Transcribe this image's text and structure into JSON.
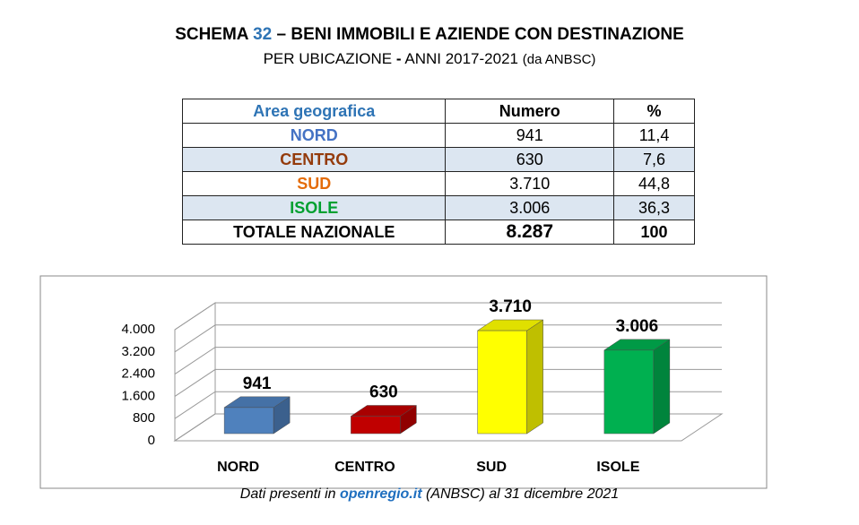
{
  "header": {
    "title_prefix": "SCHEMA",
    "title_number": "32",
    "title_rest": "– BENI IMMOBILI E AZIENDE CON DESTINAZIONE",
    "subtitle_main": "PER UBICAZIONE",
    "subtitle_dash": "-",
    "subtitle_years": "ANNI 2017-2021",
    "subtitle_source": "(da ANBSC)"
  },
  "table": {
    "columns": [
      "Area geografica",
      "Numero",
      "%"
    ],
    "rows": [
      [
        "NORD",
        "941",
        "11,4"
      ],
      [
        "CENTRO",
        "630",
        "7,6"
      ],
      [
        "SUD",
        "3.710",
        "44,8"
      ],
      [
        "ISOLE",
        "3.006",
        "36,3"
      ],
      [
        "TOTALE NAZIONALE",
        "8.287",
        "100"
      ]
    ]
  },
  "chart_data": {
    "type": "bar3d",
    "categories": [
      "NORD",
      "CENTRO",
      "SUD",
      "ISOLE"
    ],
    "values": [
      941,
      630,
      3710,
      3006
    ],
    "value_labels": [
      "941",
      "630",
      "3.710",
      "3.006"
    ],
    "colors": [
      "#4f81bd",
      "#c00000",
      "#ffff00",
      "#00b050"
    ],
    "ylim": [
      0,
      4000
    ],
    "yticks": [
      0,
      800,
      {
        "value": 1600,
        "label": "1.600"
      },
      {
        "value": 2400,
        "label": "2.400"
      },
      {
        "value": 3200,
        "label": "3.200"
      },
      {
        "value": 4000,
        "label": "4.000"
      }
    ],
    "grid": true
  },
  "footer": {
    "before": "Dati presenti in",
    "link": "openregio.it",
    "after": "(ANBSC) al 31 dicembre 2021"
  }
}
